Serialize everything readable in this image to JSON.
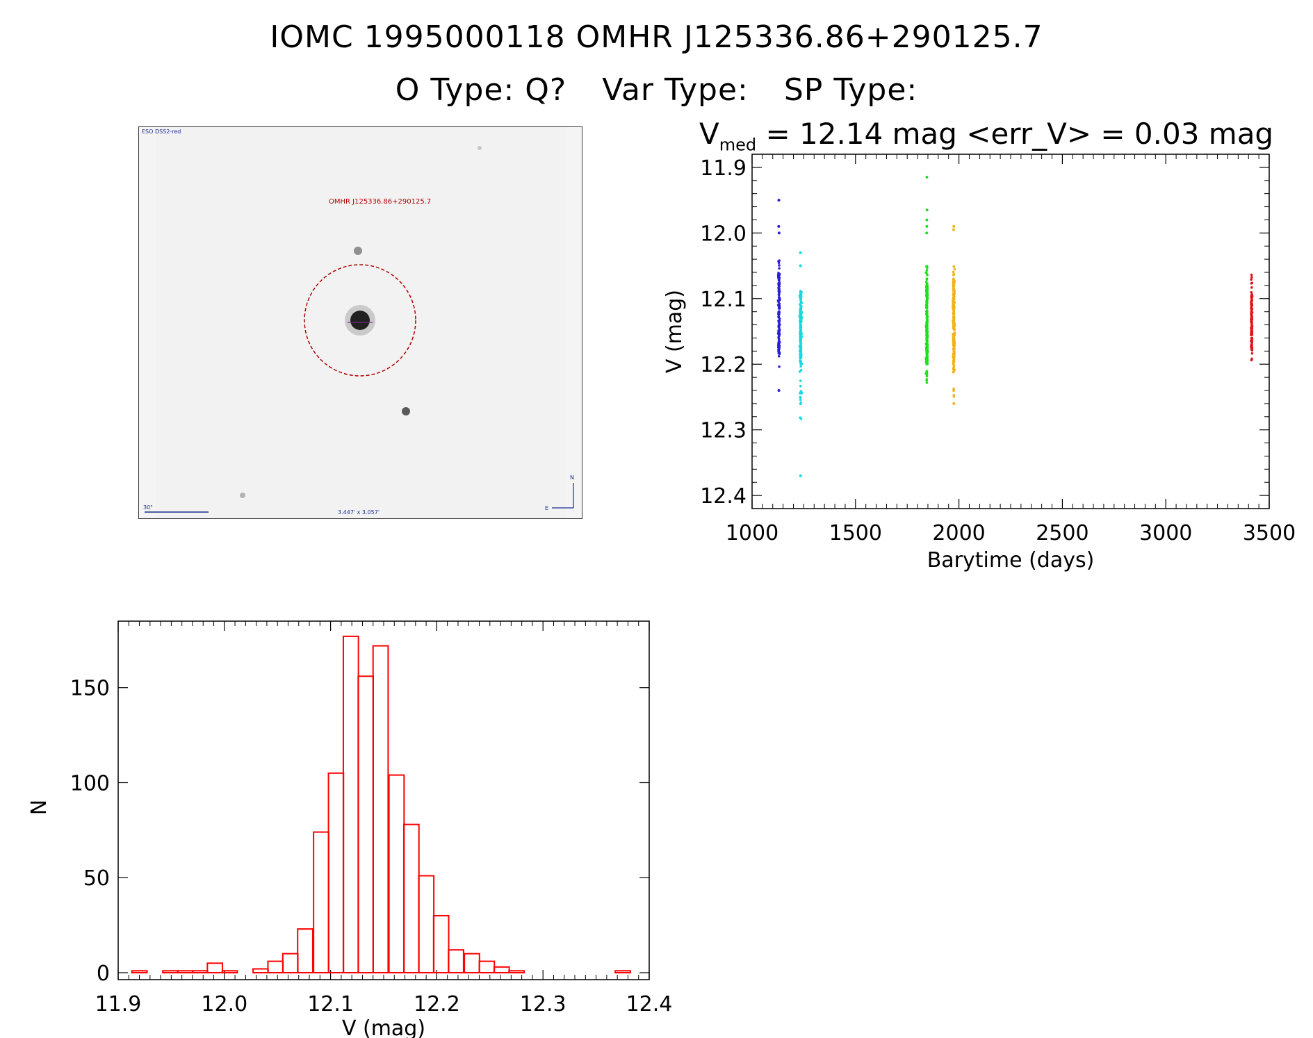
{
  "header": {
    "title_line1": "IOMC 1995000118    OMHR J125336.86+290125.7",
    "otype": "O Type: Q?",
    "vartype": "Var Type:",
    "sptype": "SP Type:"
  },
  "thumbnail": {
    "survey_label": "ESO DSS2-red",
    "object_label": "OMHR J125336.86+290125.7",
    "scale_label": "30\"",
    "fov_label": "3.447' x 3.057'",
    "north_label": "N",
    "east_label": "E"
  },
  "lightcurve": {
    "vmed_symbol": "V",
    "vmed_sub": "med",
    "vmed_text": " = 12.14 mag <err_V> = 0.03 mag"
  },
  "colors": {
    "seg1": "#2a1ed6",
    "seg2": "#16d9e0",
    "seg3": "#1de01d",
    "seg4": "#f2b21a",
    "seg5": "#e0141c",
    "hist": "#ff0000",
    "circle": "#b00000"
  },
  "chart_data": [
    {
      "type": "scatter",
      "name": "light-curve",
      "xlabel": "Barytime (days)",
      "ylabel": "V (mag)",
      "xlim": [
        1000,
        3500
      ],
      "ylim": [
        12.42,
        11.88
      ],
      "xticks": [
        1000,
        1500,
        2000,
        2500,
        3000,
        3500
      ],
      "yticks": [
        11.9,
        12.0,
        12.1,
        12.2,
        12.3,
        12.4
      ],
      "ytick_labels": [
        "11.9",
        "12.0",
        "12.1",
        "12.2",
        "12.3",
        "12.4"
      ],
      "series": [
        {
          "name": "segment-1",
          "x_center": 1130,
          "x_spread": 6,
          "v_min": 12.04,
          "v_max": 12.21,
          "core_min": 12.06,
          "core_max": 12.19,
          "outliers": [
            11.95,
            11.99,
            12.0,
            12.24
          ],
          "n": 130
        },
        {
          "name": "segment-2",
          "x_center": 1235,
          "x_spread": 7,
          "v_min": 12.08,
          "v_max": 12.29,
          "core_min": 12.09,
          "core_max": 12.2,
          "outliers": [
            12.03,
            12.05,
            12.37
          ],
          "n": 200
        },
        {
          "name": "segment-3",
          "x_center": 1845,
          "x_spread": 7,
          "v_min": 12.05,
          "v_max": 12.23,
          "core_min": 12.08,
          "core_max": 12.2,
          "outliers": [
            11.915,
            11.965,
            11.98,
            11.99,
            12.0
          ],
          "n": 210
        },
        {
          "name": "segment-4",
          "x_center": 1975,
          "x_spread": 7,
          "v_min": 12.05,
          "v_max": 12.25,
          "core_min": 12.07,
          "core_max": 12.21,
          "outliers": [
            11.99,
            11.995,
            12.26
          ],
          "n": 220
        },
        {
          "name": "segment-5",
          "x_center": 3415,
          "x_spread": 5,
          "v_min": 12.06,
          "v_max": 12.2,
          "core_min": 12.09,
          "core_max": 12.18,
          "outliers": [],
          "n": 140
        }
      ]
    },
    {
      "type": "bar",
      "name": "histogram",
      "xlabel": "V (mag)",
      "ylabel": "N",
      "xlim": [
        11.9,
        12.4
      ],
      "ylim": [
        0,
        185
      ],
      "xticks": [
        11.9,
        12.0,
        12.1,
        12.2,
        12.3,
        12.4
      ],
      "xtick_labels": [
        "11.9",
        "12.0",
        "12.1",
        "12.2",
        "12.3",
        "12.4"
      ],
      "yticks": [
        0,
        50,
        100,
        150
      ],
      "ytick_labels": [
        "0",
        "50",
        "100",
        "150"
      ],
      "bin_width": 0.0142,
      "bin_starts": [
        11.913,
        11.927,
        11.942,
        11.956,
        11.97,
        11.984,
        11.998,
        12.013,
        12.027,
        12.041,
        12.055,
        12.069,
        12.084,
        12.098,
        12.112,
        12.126,
        12.14,
        12.155,
        12.169,
        12.183,
        12.197,
        12.211,
        12.226,
        12.24,
        12.254,
        12.268,
        12.282,
        12.297,
        12.311,
        12.325,
        12.339,
        12.353,
        12.368
      ],
      "values": [
        1,
        0,
        1,
        1,
        1,
        5,
        1,
        0,
        2,
        6,
        10,
        23,
        74,
        105,
        177,
        156,
        172,
        104,
        78,
        51,
        30,
        12,
        10,
        6,
        3,
        1,
        0,
        0,
        0,
        0,
        0,
        0,
        1
      ]
    }
  ]
}
